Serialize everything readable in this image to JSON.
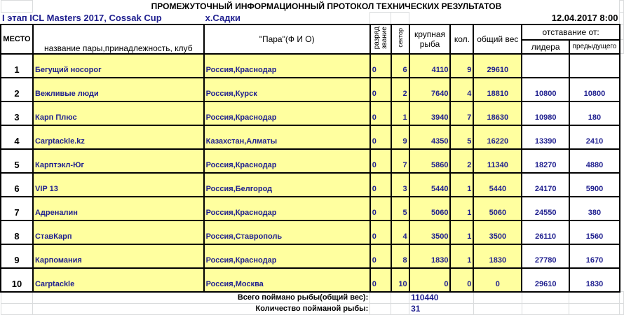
{
  "title": "ПРОМЕЖУТОЧНЫЙ  ИНФОРМАЦИОННЫЙ ПРОТОКОЛ ТЕХНИЧЕСКИХ РЕЗУЛЬТАТОВ",
  "event": "I этап ICL Masters 2017, Cossak Cup",
  "location": "х.Садки",
  "datetime": "12.04.2017 8:00",
  "headers": {
    "place": "МЕСТО",
    "team": "название пары,принадлежность, клуб",
    "pair": "\"Пара\"(Ф И О)",
    "rank1": "разряд",
    "rank2": "звание",
    "sector": "сектор",
    "big1": "крупная",
    "big2": "рыба",
    "count": "кол.",
    "weight": "общий вес",
    "lag": "отставание от:",
    "leader": "лидера",
    "prev": "предыдущего"
  },
  "rows": [
    {
      "place": "1",
      "team": "Бегущий носорог",
      "region": " Россия,Краснодар",
      "rank": "0",
      "sector": "6",
      "big": "4110",
      "count": "9",
      "weight": "29610",
      "leader": "",
      "prev": ""
    },
    {
      "place": "2",
      "team": "Вежливые люди",
      "region": "Россия,Курск",
      "rank": "0",
      "sector": "2",
      "big": "7640",
      "count": "4",
      "weight": "18810",
      "leader": "10800",
      "prev": "10800"
    },
    {
      "place": "3",
      "team": "Карп Плюс",
      "region": "Россия,Краснодар",
      "rank": "0",
      "sector": "1",
      "big": "3940",
      "count": "7",
      "weight": "18630",
      "leader": "10980",
      "prev": "180"
    },
    {
      "place": "4",
      "team": "Carptackle.kz",
      "region": "Казахстан,Алматы",
      "rank": "0",
      "sector": "9",
      "big": "4350",
      "count": "5",
      "weight": "16220",
      "leader": "13390",
      "prev": "2410"
    },
    {
      "place": "5",
      "team": "Карптэкл-Юг",
      "region": "Россия,Краснодар",
      "rank": "0",
      "sector": "7",
      "big": "5860",
      "count": "2",
      "weight": "11340",
      "leader": "18270",
      "prev": "4880"
    },
    {
      "place": "6",
      "team": "VIP 13",
      "region": "Россия,Белгород",
      "rank": "0",
      "sector": "3",
      "big": "5440",
      "count": "1",
      "weight": "5440",
      "leader": "24170",
      "prev": "5900"
    },
    {
      "place": "7",
      "team": "Адреналин",
      "region": "Россия,Краснодар",
      "rank": "0",
      "sector": "5",
      "big": "5060",
      "count": "1",
      "weight": "5060",
      "leader": "24550",
      "prev": "380"
    },
    {
      "place": "8",
      "team": "СтавКарп",
      "region": "Россия,Ставрополь",
      "rank": "0",
      "sector": "4",
      "big": "3500",
      "count": "1",
      "weight": "3500",
      "leader": "26110",
      "prev": "1560"
    },
    {
      "place": "9",
      "team": "Карпомания",
      "region": "Россия,Краснодар",
      "rank": "0",
      "sector": "8",
      "big": "1830",
      "count": "1",
      "weight": "1830",
      "leader": "27780",
      "prev": "1670"
    },
    {
      "place": "10",
      "team": "Carptackle",
      "region": "Россия,Москва",
      "rank": "0",
      "sector": "10",
      "big": "0",
      "count": "0",
      "weight": "0",
      "leader": "29610",
      "prev": "1830"
    }
  ],
  "totals": {
    "weight_label": "Всего поймано рыбы(общий вес):",
    "weight": "110440",
    "count_label": "Количество поймaной рыбы:",
    "count": "31"
  }
}
